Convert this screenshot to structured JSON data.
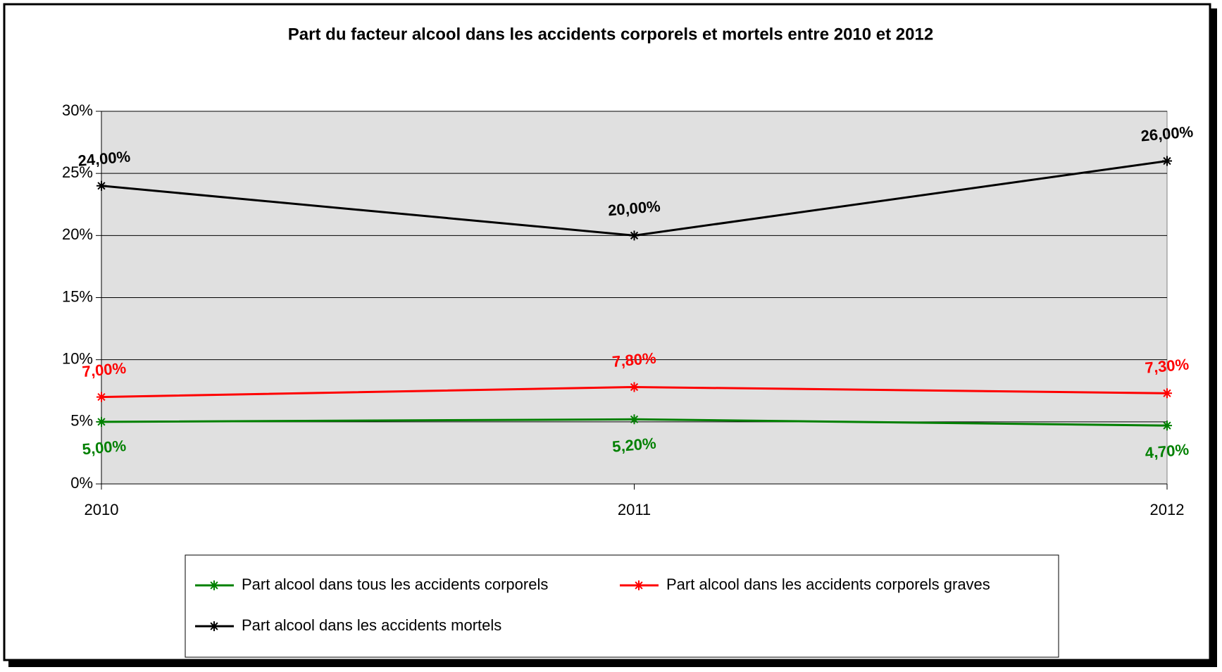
{
  "chart_data": {
    "type": "line",
    "title": "Part du facteur alcool dans les accidents corporels et mortels entre 2010 et 2012",
    "categories": [
      "2010",
      "2011",
      "2012"
    ],
    "series": [
      {
        "name": "Part alcool dans tous les accidents corporels",
        "color": "#008000",
        "values": [
          5.0,
          5.2,
          4.7
        ],
        "value_labels": [
          "5,00%",
          "5,20%",
          "4,70%"
        ]
      },
      {
        "name": "Part alcool dans les accidents corporels graves",
        "color": "#ff0000",
        "values": [
          7.0,
          7.8,
          7.3
        ],
        "value_labels": [
          "7,00%",
          "7,80%",
          "7,30%"
        ]
      },
      {
        "name": "Part alcool dans les accidents mortels",
        "color": "#000000",
        "values": [
          24.0,
          20.0,
          26.0
        ],
        "value_labels": [
          "24,00%",
          "20,00%",
          "26,00%"
        ]
      }
    ],
    "ylim": [
      0,
      30
    ],
    "yticks": [
      {
        "value": 0,
        "label": "0%"
      },
      {
        "value": 5,
        "label": "5%"
      },
      {
        "value": 10,
        "label": "10%"
      },
      {
        "value": 15,
        "label": "15%"
      },
      {
        "value": 20,
        "label": "20%"
      },
      {
        "value": 25,
        "label": "25%"
      },
      {
        "value": 30,
        "label": "30%"
      }
    ],
    "grid": true,
    "legend": "bottom"
  }
}
